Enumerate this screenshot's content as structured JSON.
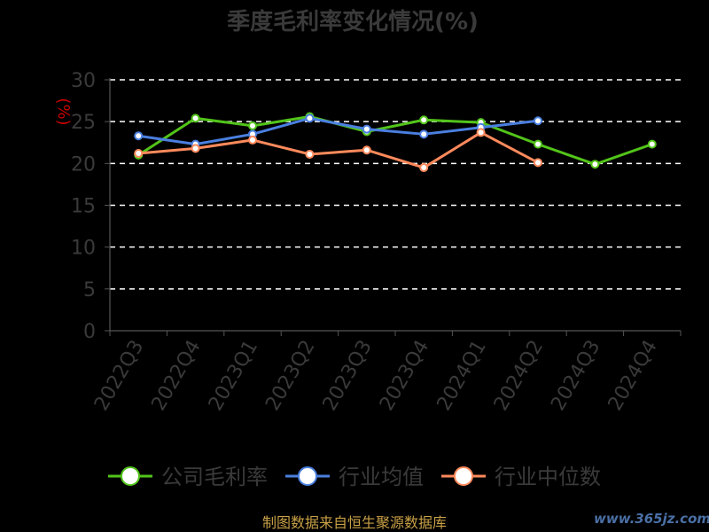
{
  "chart_data": {
    "type": "line",
    "title": "季度毛利率变化情况(%)",
    "ylabel": "(%)",
    "ylim": [
      0,
      30
    ],
    "yticks": [
      0,
      5,
      10,
      15,
      20,
      25,
      30
    ],
    "grid": true,
    "legend_position": "bottom",
    "categories": [
      "2022Q3",
      "2022Q4",
      "2023Q1",
      "2023Q2",
      "2023Q3",
      "2023Q4",
      "2024Q1",
      "2024Q2",
      "2024Q3",
      "2024Q4"
    ],
    "series": [
      {
        "name": "公司毛利率",
        "color": "#52c41a",
        "values": [
          21.0,
          25.4,
          24.5,
          25.6,
          23.8,
          25.2,
          24.9,
          22.3,
          19.9,
          22.3
        ]
      },
      {
        "name": "行业均值",
        "color": "#4a7fe0",
        "values": [
          23.3,
          22.3,
          23.5,
          25.4,
          24.1,
          23.5,
          24.3,
          25.1,
          null,
          null
        ]
      },
      {
        "name": "行业中位数",
        "color": "#ff8a5c",
        "values": [
          21.2,
          21.8,
          22.8,
          21.1,
          21.6,
          19.5,
          23.7,
          20.1,
          null,
          null
        ]
      }
    ]
  },
  "footer": {
    "source": "制图数据来自恒生聚源数据库",
    "watermark": "www.365jz.com"
  }
}
